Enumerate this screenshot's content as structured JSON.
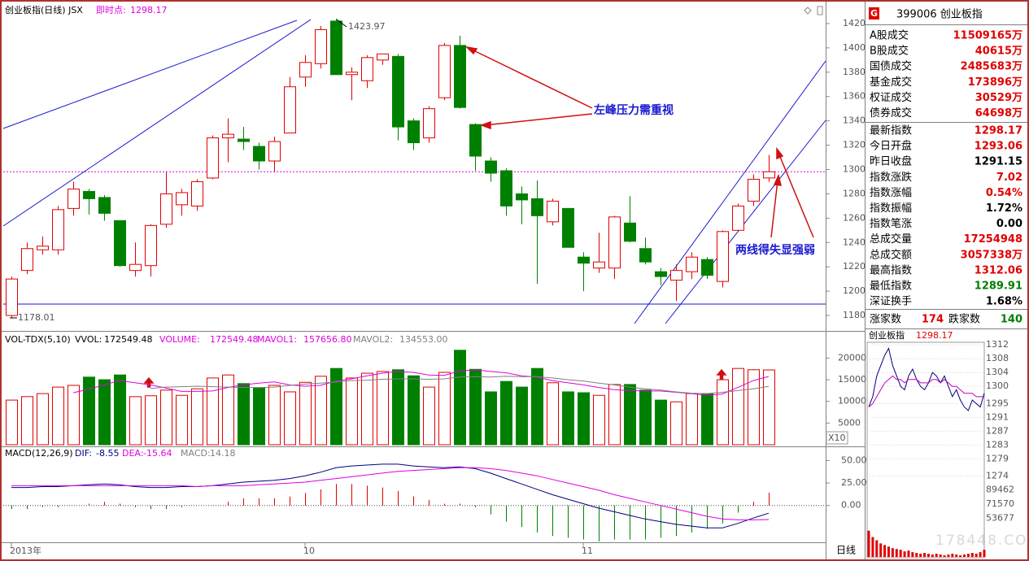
{
  "chart_data": [
    {
      "type": "candlestick",
      "title": "创业板指(日线) JSX",
      "current_label": "即时点:",
      "current": 1298.17,
      "categories": [
        "2013年",
        null,
        null,
        null,
        null,
        null,
        null,
        null,
        null,
        null,
        null,
        null,
        null,
        null,
        null,
        null,
        null,
        null,
        null,
        "10",
        null,
        null,
        null,
        null,
        null,
        null,
        null,
        null,
        null,
        null,
        null,
        null,
        null,
        null,
        null,
        null,
        null,
        "11",
        null,
        null,
        null,
        null,
        null,
        null,
        null,
        null,
        null,
        null,
        null,
        null
      ],
      "open": [
        1180,
        1217,
        1234,
        1234,
        1268,
        1282,
        1277,
        1258,
        1217,
        1221,
        1255,
        1271,
        1270,
        1293,
        1326,
        1325,
        1319,
        1307,
        1330,
        1376,
        1387,
        1422,
        1378,
        1373,
        1390,
        1393,
        1340,
        1326,
        1359,
        1402,
        1337,
        1307,
        1299,
        1280,
        1276,
        1257,
        1268,
        1228,
        1219,
        1219,
        1256,
        1235,
        1216,
        1209,
        1216,
        1226,
        1208,
        1250,
        1274,
        1293.06
      ],
      "close": [
        1210,
        1235,
        1237,
        1267,
        1284,
        1276,
        1264,
        1221,
        1222,
        1254,
        1280,
        1281,
        1290,
        1326,
        1329,
        1323,
        1307,
        1323,
        1368,
        1388,
        1415,
        1378,
        1380,
        1392,
        1395,
        1335,
        1322,
        1350,
        1402,
        1351,
        1311,
        1297,
        1270,
        1275,
        1262,
        1274,
        1236,
        1223,
        1224,
        1261,
        1241,
        1224,
        1212,
        1217,
        1228,
        1213,
        1249,
        1270,
        1292,
        1298.17
      ],
      "high": [
        1212,
        1240,
        1245,
        1270,
        1290,
        1284,
        1279,
        1258,
        1240,
        1255,
        1298,
        1284,
        1292,
        1328,
        1342,
        1335,
        1322,
        1327,
        1376,
        1394,
        1418,
        1423.97,
        1384,
        1394,
        1395,
        1395,
        1342,
        1352,
        1404,
        1410,
        1338,
        1310,
        1301,
        1286,
        1291,
        1276,
        1268,
        1232,
        1248,
        1262,
        1278,
        1244,
        1219,
        1222,
        1232,
        1228,
        1250,
        1272,
        1296,
        1312.06
      ],
      "low": [
        1178.01,
        1214,
        1230,
        1230,
        1262,
        1263,
        1258,
        1220,
        1212,
        1212,
        1252,
        1262,
        1266,
        1292,
        1306,
        1316,
        1300,
        1298,
        1330,
        1368,
        1383,
        1378,
        1357,
        1367,
        1386,
        1324,
        1316,
        1322,
        1357,
        1350,
        1299,
        1290,
        1262,
        1255,
        1206,
        1254,
        1236,
        1200,
        1215,
        1210,
        1240,
        1222,
        1205,
        1192,
        1210,
        1210,
        1203,
        1249,
        1270,
        1289.91
      ],
      "up_color": "#e00000",
      "down_color": "#008000",
      "ylim": [
        1172,
        1436
      ],
      "yticks": [
        1180,
        1200,
        1220,
        1240,
        1260,
        1280,
        1300,
        1320,
        1340,
        1360,
        1380,
        1400,
        1420
      ],
      "annotations": [
        "左峰压力需重视",
        "两线得失显强弱"
      ]
    },
    {
      "type": "bar",
      "title": "VOL-TDX(5,10)",
      "vvol_name": "VVOL:",
      "vvol_label": "172549.48",
      "axis_note": "X10",
      "series": [
        {
          "name": "VOLUME:",
          "label": "172549.48",
          "color": "#e000e0",
          "values": [
            10300,
            11100,
            11800,
            13300,
            13700,
            15600,
            15000,
            16100,
            11100,
            11300,
            12600,
            11400,
            12900,
            15400,
            16100,
            14100,
            13100,
            13700,
            12200,
            14400,
            15800,
            17600,
            15400,
            16500,
            16900,
            17300,
            15900,
            13300,
            16700,
            21800,
            17400,
            12200,
            14600,
            13300,
            17600,
            14300,
            12200,
            12000,
            11400,
            13900,
            13900,
            12600,
            10300,
            9900,
            11800,
            11800,
            15000,
            17600,
            17300,
            17254.948
          ]
        },
        {
          "name": "MAVOL1:",
          "label": "157656.80",
          "color": "#e000e0",
          "values": [
            null,
            null,
            null,
            null,
            12000,
            12800,
            13800,
            14800,
            14300,
            13800,
            13100,
            12300,
            12300,
            12400,
            13200,
            13800,
            14200,
            14500,
            13800,
            13500,
            13700,
            14700,
            15200,
            15900,
            16500,
            16900,
            16700,
            16100,
            16000,
            17000,
            17300,
            16900,
            16600,
            15900,
            15600,
            14800,
            14300,
            13800,
            13200,
            12700,
            12500,
            12400,
            12400,
            12100,
            11800,
            11400,
            11700,
            13200,
            14800,
            15765.68
          ]
        },
        {
          "name": "MAVOL2:",
          "label": "134553.00",
          "color": "#808080",
          "values": [
            null,
            null,
            null,
            null,
            null,
            null,
            null,
            null,
            null,
            13000,
            13300,
            13400,
            13500,
            13400,
            13300,
            13200,
            13200,
            13300,
            13700,
            14000,
            14200,
            14500,
            14800,
            14900,
            15100,
            15200,
            15200,
            15100,
            15200,
            15600,
            15700,
            15600,
            15800,
            15700,
            15700,
            15400,
            15000,
            14700,
            14200,
            13800,
            13300,
            12900,
            12600,
            12200,
            11900,
            11800,
            12100,
            12500,
            12900,
            13455.3
          ]
        }
      ],
      "ylim": [
        0,
        25700
      ],
      "yticks": [
        5000,
        10000,
        15000,
        20000
      ]
    },
    {
      "type": "macd",
      "title": "MACD(12,26,9)",
      "series": [
        {
          "name": "DIF:",
          "color": "#000080",
          "values": [
            20,
            20,
            21,
            21,
            22,
            23,
            24,
            23,
            21,
            20,
            20,
            21,
            21,
            22,
            24,
            26,
            27,
            28,
            30,
            33,
            37,
            42,
            44,
            45,
            46,
            46,
            44,
            43,
            42,
            43,
            41,
            36,
            30,
            24,
            18,
            12,
            7,
            2,
            -3,
            -7,
            -11,
            -15,
            -18,
            -21,
            -23,
            -25,
            -25,
            -20,
            -14,
            -8.55
          ]
        },
        {
          "name": "DEA:",
          "color": "#e000e0",
          "values": [
            22,
            22,
            22,
            22,
            22,
            22,
            22,
            22,
            22,
            22,
            22,
            22,
            21,
            22,
            22,
            22,
            23,
            24,
            25,
            26,
            28,
            30,
            32,
            34,
            36,
            38,
            39,
            40,
            41,
            42,
            42,
            41,
            39,
            36,
            33,
            29,
            25,
            21,
            17,
            12,
            8,
            4,
            0,
            -4,
            -8,
            -12,
            -15,
            -16,
            -16,
            -15.64
          ]
        },
        {
          "name": "MACD:",
          "color": "#808080",
          "values": [
            -4,
            -4,
            -2,
            -2,
            0,
            2,
            4,
            2,
            -2,
            -4,
            -4,
            -2,
            0,
            0,
            4,
            8,
            8,
            8,
            10,
            14,
            18,
            24,
            24,
            22,
            20,
            16,
            10,
            6,
            2,
            2,
            -2,
            -10,
            -18,
            -24,
            -30,
            -34,
            -36,
            -38,
            -40,
            -38,
            -38,
            -38,
            -36,
            -34,
            -30,
            -26,
            -20,
            -8,
            4,
            14.18
          ]
        }
      ],
      "ylim": [
        -41,
        64
      ],
      "yticks": [
        {
          "value": 0,
          "label": "0.00"
        },
        {
          "value": 25,
          "label": "25.00"
        },
        {
          "value": 50,
          "label": "50.00"
        }
      ]
    },
    {
      "type": "intraday",
      "title": "创业板指",
      "last": 1298.17,
      "series": [
        {
          "color": "#000080",
          "values": [
            1294,
            1297,
            1303,
            1306,
            1309,
            1311,
            1306,
            1303,
            1300,
            1299,
            1303,
            1305,
            1302,
            1300,
            1299,
            1301,
            1304,
            1303,
            1301,
            1303,
            1300,
            1297,
            1299,
            1296,
            1294,
            1293,
            1296,
            1295,
            1294,
            1298
          ]
        },
        {
          "color": "#c000c0",
          "values": [
            1294,
            1295,
            1297,
            1299,
            1301,
            1302,
            1303,
            1302,
            1302,
            1301,
            1302,
            1302,
            1302,
            1301,
            1301,
            1301,
            1302,
            1302,
            1301,
            1302,
            1301,
            1300,
            1300,
            1299,
            1298,
            1298,
            1298,
            1297,
            1297,
            1297
          ]
        }
      ],
      "volume": [
        38000,
        30000,
        26000,
        22000,
        20000,
        18000,
        16000,
        15000,
        14000,
        12000,
        13000,
        11000,
        10000,
        9000,
        10000,
        9000,
        8000,
        9000,
        8000,
        7000,
        8000,
        9000,
        8000,
        7000,
        8000,
        9000,
        10000,
        9000,
        11000,
        14000
      ],
      "volume_color": "#e00000",
      "ylim": [
        1272,
        1313
      ],
      "yticks": [
        1312,
        1308,
        1304,
        1300,
        1295,
        1291,
        1287,
        1283,
        1279,
        1274
      ],
      "ytick_colors": [
        "#e00000",
        "#e00000",
        "#e00000",
        "#e00000",
        "#e00000",
        "#000000",
        "#008000",
        "#008000",
        "#008000",
        "#008000"
      ],
      "vlim": [
        5000,
        97000
      ],
      "vticks": [
        89462,
        71570,
        53677
      ]
    }
  ],
  "info_panel": {
    "badge": "G",
    "code": "399006 创业板指",
    "rows": [
      {
        "label": "A股成交",
        "value": "11509165万",
        "color": "#e00000"
      },
      {
        "label": "B股成交",
        "value": "40615万",
        "color": "#e00000"
      },
      {
        "label": "国债成交",
        "value": "2485683万",
        "color": "#e00000"
      },
      {
        "label": "基金成交",
        "value": "173896万",
        "color": "#e00000"
      },
      {
        "label": "权证成交",
        "value": "30529万",
        "color": "#e00000"
      },
      {
        "label": "债券成交",
        "value": "64698万",
        "color": "#e00000"
      },
      {
        "label": "最新指数",
        "value": "1298.17",
        "color": "#e00000"
      },
      {
        "label": "今日开盘",
        "value": "1293.06",
        "color": "#e00000"
      },
      {
        "label": "昨日收盘",
        "value": "1291.15",
        "color": "#000000"
      },
      {
        "label": "指数涨跌",
        "value": "7.02",
        "color": "#e00000"
      },
      {
        "label": "指数涨幅",
        "value": "0.54%",
        "color": "#e00000"
      },
      {
        "label": "指数振幅",
        "value": "1.72%",
        "color": "#000000"
      },
      {
        "label": "指数笔涨",
        "value": "0.00",
        "color": "#000000"
      },
      {
        "label": "总成交量",
        "value": "17254948",
        "color": "#e00000"
      },
      {
        "label": "总成交额",
        "value": "3057338万",
        "color": "#e00000"
      },
      {
        "label": "最高指数",
        "value": "1312.06",
        "color": "#e00000"
      },
      {
        "label": "最低指数",
        "value": "1289.91",
        "color": "#008000"
      },
      {
        "label": "深证换手",
        "value": "1.68%",
        "color": "#000000"
      }
    ],
    "breadth": [
      {
        "label": "涨家数",
        "value": 174,
        "color": "#e00000"
      },
      {
        "label": "跌家数",
        "value": 140,
        "color": "#008000"
      }
    ]
  },
  "footer": {
    "period": "日线",
    "watermark": "178448.COM"
  }
}
